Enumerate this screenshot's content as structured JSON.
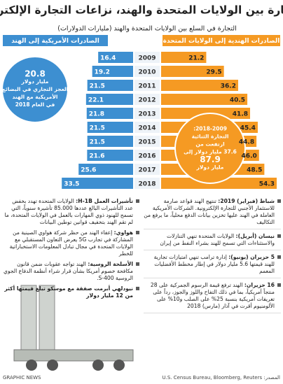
{
  "chart_data": {
    "type": "bar",
    "title": "التجارة بين الولايات المتحدة والهند، نزاعات التجارة الإلكترونية",
    "subtitle": "التجارة في السلع بين الولايات المتحدة والهند (مليارات الدولارات)",
    "categories": [
      "2009",
      "2010",
      "2011",
      "2012",
      "2013",
      "2014",
      "2015",
      "2016",
      "2017",
      "2018"
    ],
    "series": [
      {
        "name": "الصادرات الأمريكية إلى الهند",
        "color": "#3d8fd1",
        "values": [
          16.4,
          19.2,
          21.5,
          22.1,
          21.8,
          21.5,
          21.5,
          21.6,
          25.6,
          33.5
        ]
      },
      {
        "name": "الصادرات الهندية إلى الولايات المتحدة",
        "color": "#f59a23",
        "values": [
          21.2,
          29.5,
          36.2,
          40.5,
          41.8,
          45.4,
          44.8,
          46,
          48.5,
          54.3
        ],
        "value_labels": [
          "21.2",
          "29.5",
          "36.2",
          "40.5",
          "41.8",
          "45.4",
          "44.8",
          "46.0",
          "48.5",
          "54.3"
        ]
      }
    ],
    "annotations": [
      {
        "lines": [
          "20.8",
          "مليار دولار",
          "العجز التجاري في البضائع",
          "الأمريكية مع الهند",
          "في العام 2018"
        ]
      },
      {
        "lines": [
          "2018-2009:",
          "التجارة الثنائية",
          "ارتفعت من",
          "37.6 مليار دولار إلى",
          "87.9",
          "مليار دولار"
        ]
      }
    ]
  },
  "notes_right": [
    {
      "title": "شباط (فبراير) 2019:",
      "text": "تنتهج الهند قواعد صارمة للاستثمار الأجنبي للتجارة الإلكترونية. الشركات الأمريكية العاملة في الهند عليها تخزين بيانات الدفع محلياً، ما يرفع من التكاليف"
    },
    {
      "title": "نيسان (أبريل):",
      "text": "الولايات المتحدة تنهي التنازلات والاستثناءات التي تسمح للهند بشراء النفط من إيران"
    },
    {
      "title": "5 حزيران (يونيو):",
      "text": "إدارة ترامب تنهي امتيازات تجارية للهند قيمتها 5.6 مليار دولار في إطار مخطط الأفضليات المعمم"
    },
    {
      "title": "16 حزيران:",
      "text": "الهند ترفع قيمة الرسوم الجمركية على 28 منتجاً أمريكياً، بما في ذلك التفاح واللوز والجوز، رداً على تعريفات أمريكية بنسبة 25% على الصلب و10% على الألومنيوم أقرت في آذار (مارس) 2018"
    }
  ],
  "notes_left": [
    {
      "title": "تأشيرات العمل H-1B:",
      "text": "الولايات المتحدة تهدد بخفض عدد التأشيرات البالغ عددها 85.000 تأشيرة سنوياً، التي تسمح للهنود ذوي المهارات بالعمل في الولايات المتحدة، ما لم تقم الهند بتخفيف قوانين توطين البيانات"
    },
    {
      "title": "هواوي:",
      "text": "إعفاء الهند من حظر شركة هواوي الصينية من المشاركة في تجارب 5G يعرض التعاون المستقبلي مع الولايات المتحدة في مجال تبادل المعلومات الاستخباراتية للخطر"
    },
    {
      "title": "الأسلحة الروسية:",
      "text": "الهند تواجه عقوبات ضمن قانون مكافحة خصوم أمريكا بشأن قرار شراء أنظمة الدفاع الجوي الروسية S-400."
    },
    {
      "title": "نيودلهي أبرمت صفقة مع موسكو تبلغ قيمتها أكثر من 12 مليار دولار",
      "text": ""
    }
  ],
  "source": "المصدر: U.S. Census Bureau, Bloomberg, Reuters",
  "credit": "GRAPHIC NEWS"
}
